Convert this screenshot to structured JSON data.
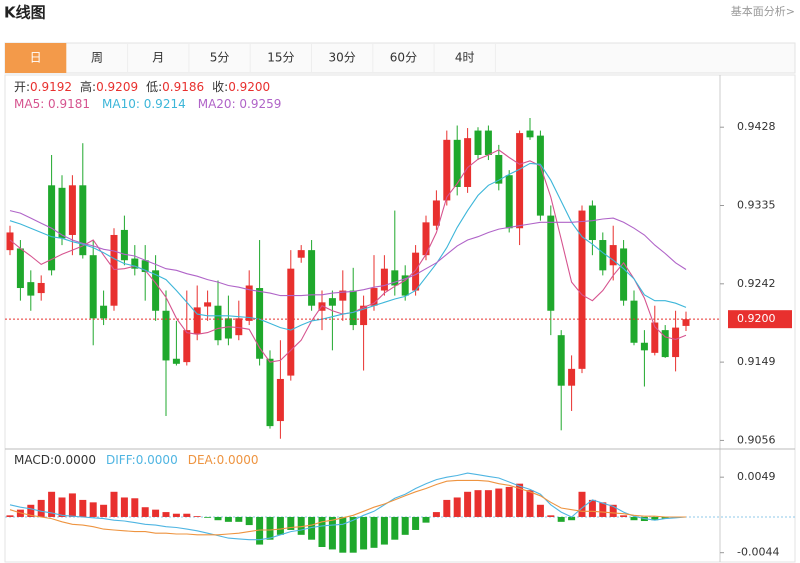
{
  "header": {
    "title": "K线图",
    "link": "基本面分析>"
  },
  "tabs": [
    "日",
    "周",
    "月",
    "5分",
    "15分",
    "30分",
    "60分",
    "4时"
  ],
  "active_tab": 0,
  "chart_data": [
    {
      "type": "candlestick",
      "info": [
        {
          "label": "开:",
          "value": "0.9192"
        },
        {
          "label": "高:",
          "value": "0.9209"
        },
        {
          "label": "低:",
          "value": "0.9186"
        },
        {
          "label": "收:",
          "value": "0.9200"
        }
      ],
      "up_color": "#e8302e",
      "down_color": "#1fa82c",
      "ohlc": [
        [
          0.9282,
          0.9311,
          0.9276,
          0.9303
        ],
        [
          0.9284,
          0.9294,
          0.9222,
          0.9237
        ],
        [
          0.9244,
          0.9258,
          0.921,
          0.9228
        ],
        [
          0.9231,
          0.9252,
          0.9222,
          0.9243
        ],
        [
          0.9359,
          0.9395,
          0.9252,
          0.9258
        ],
        [
          0.9356,
          0.9371,
          0.9288,
          0.9296
        ],
        [
          0.93,
          0.9371,
          0.9276,
          0.9359
        ],
        [
          0.9359,
          0.9409,
          0.9272,
          0.9276
        ],
        [
          0.9276,
          0.9294,
          0.9169,
          0.9201
        ],
        [
          0.9216,
          0.9234,
          0.9193,
          0.9201
        ],
        [
          0.9216,
          0.9308,
          0.921,
          0.93
        ],
        [
          0.9306,
          0.9323,
          0.9264,
          0.927
        ],
        [
          0.9272,
          0.9288,
          0.9252,
          0.926
        ],
        [
          0.927,
          0.9288,
          0.9222,
          0.9256
        ],
        [
          0.9258,
          0.9276,
          0.9198,
          0.921
        ],
        [
          0.921,
          0.9234,
          0.9085,
          0.9151
        ],
        [
          0.9153,
          0.9198,
          0.9145,
          0.9147
        ],
        [
          0.9149,
          0.9234,
          0.9145,
          0.9187
        ],
        [
          0.9183,
          0.924,
          0.9175,
          0.9214
        ],
        [
          0.9215,
          0.9234,
          0.9198,
          0.922
        ],
        [
          0.9216,
          0.9246,
          0.9169,
          0.9175
        ],
        [
          0.9201,
          0.9228,
          0.9169,
          0.9177
        ],
        [
          0.9181,
          0.9222,
          0.9175,
          0.9201
        ],
        [
          0.9198,
          0.9258,
          0.9193,
          0.924
        ],
        [
          0.9237,
          0.9294,
          0.9145,
          0.9153
        ],
        [
          0.9153,
          0.9163,
          0.907,
          0.9073
        ],
        [
          0.9079,
          0.9175,
          0.9058,
          0.9129
        ],
        [
          0.9133,
          0.9282,
          0.9127,
          0.926
        ],
        [
          0.9273,
          0.9288,
          0.9267,
          0.9282
        ],
        [
          0.9282,
          0.9294,
          0.921,
          0.9216
        ],
        [
          0.921,
          0.9234,
          0.9187,
          0.922
        ],
        [
          0.9225,
          0.9234,
          0.9163,
          0.9216
        ],
        [
          0.9222,
          0.9258,
          0.9198,
          0.9234
        ],
        [
          0.9234,
          0.9261,
          0.9187,
          0.9193
        ],
        [
          0.9193,
          0.9228,
          0.9139,
          0.9216
        ],
        [
          0.9216,
          0.9276,
          0.921,
          0.9237
        ],
        [
          0.9234,
          0.9276,
          0.9228,
          0.926
        ],
        [
          0.9258,
          0.9329,
          0.9228,
          0.924
        ],
        [
          0.9252,
          0.9264,
          0.9222,
          0.9228
        ],
        [
          0.9234,
          0.9288,
          0.9228,
          0.9279
        ],
        [
          0.9276,
          0.9323,
          0.927,
          0.9315
        ],
        [
          0.9311,
          0.9353,
          0.9306,
          0.9341
        ],
        [
          0.9341,
          0.9424,
          0.9335,
          0.9413
        ],
        [
          0.9413,
          0.943,
          0.9347,
          0.9357
        ],
        [
          0.9357,
          0.9427,
          0.935,
          0.9415
        ],
        [
          0.9424,
          0.9428,
          0.9389,
          0.9395
        ],
        [
          0.9424,
          0.943,
          0.9389,
          0.9395
        ],
        [
          0.9395,
          0.9407,
          0.9353,
          0.9361
        ],
        [
          0.9371,
          0.9377,
          0.9303,
          0.9308
        ],
        [
          0.9308,
          0.9424,
          0.9288,
          0.9421
        ],
        [
          0.9424,
          0.9439,
          0.9413,
          0.9416
        ],
        [
          0.9418,
          0.9424,
          0.9317,
          0.9323
        ],
        [
          0.9323,
          0.9335,
          0.9181,
          0.921
        ],
        [
          0.9181,
          0.9187,
          0.9068,
          0.9121
        ],
        [
          0.9121,
          0.9157,
          0.9091,
          0.9141
        ],
        [
          0.9141,
          0.9335,
          0.9136,
          0.9329
        ],
        [
          0.9335,
          0.9341,
          0.9276,
          0.9294
        ],
        [
          0.9294,
          0.9303,
          0.9252,
          0.9258
        ],
        [
          0.9264,
          0.9311,
          0.9246,
          0.9288
        ],
        [
          0.9284,
          0.9294,
          0.9216,
          0.9222
        ],
        [
          0.9222,
          0.9234,
          0.9169,
          0.9172
        ],
        [
          0.9172,
          0.9187,
          0.912,
          0.9163
        ],
        [
          0.916,
          0.9216,
          0.9157,
          0.9196
        ],
        [
          0.9187,
          0.9193,
          0.9154,
          0.9155
        ],
        [
          0.9155,
          0.921,
          0.9138,
          0.919
        ],
        [
          0.9192,
          0.9209,
          0.9186,
          0.92
        ]
      ],
      "series": [
        {
          "name": "MA5: 0.9181",
          "color": "#d6548f",
          "values": [
            0.9294,
            0.9284,
            0.9275,
            0.9265,
            0.9271,
            0.9277,
            0.9282,
            0.9287,
            0.9294,
            0.9276,
            0.9259,
            0.926,
            0.9263,
            0.9258,
            0.9243,
            0.9226,
            0.9201,
            0.9184,
            0.9182,
            0.9184,
            0.9189,
            0.9191,
            0.919,
            0.9188,
            0.9166,
            0.9149,
            0.9151,
            0.9163,
            0.9175,
            0.9198,
            0.9216,
            0.921,
            0.9206,
            0.9208,
            0.9214,
            0.9219,
            0.9231,
            0.9239,
            0.9246,
            0.9258,
            0.9277,
            0.9303,
            0.9345,
            0.9361,
            0.938,
            0.939,
            0.9395,
            0.9401,
            0.9392,
            0.9384,
            0.9388,
            0.9382,
            0.9345,
            0.9295,
            0.9244,
            0.9229,
            0.9222,
            0.9234,
            0.9252,
            0.9267,
            0.9248,
            0.9225,
            0.9191,
            0.9179,
            0.9176,
            0.9181
          ]
        },
        {
          "name": "MA10: 0.9214",
          "color": "#3db6d9",
          "values": [
            0.9317,
            0.9313,
            0.9308,
            0.9303,
            0.9298,
            0.9296,
            0.9292,
            0.9289,
            0.9285,
            0.9279,
            0.9272,
            0.9266,
            0.9263,
            0.9258,
            0.9253,
            0.9247,
            0.9234,
            0.922,
            0.9206,
            0.9204,
            0.9204,
            0.9204,
            0.9203,
            0.9202,
            0.92,
            0.9195,
            0.919,
            0.9187,
            0.9193,
            0.9198,
            0.92,
            0.9203,
            0.9206,
            0.9208,
            0.9212,
            0.9216,
            0.922,
            0.9224,
            0.9227,
            0.9234,
            0.925,
            0.9266,
            0.9285,
            0.9309,
            0.9329,
            0.9347,
            0.9359,
            0.9365,
            0.9372,
            0.9378,
            0.9385,
            0.9384,
            0.9365,
            0.934,
            0.9315,
            0.9298,
            0.9289,
            0.9279,
            0.927,
            0.926,
            0.9248,
            0.9229,
            0.9222,
            0.9222,
            0.9219,
            0.9214
          ]
        },
        {
          "name": "MA20: 0.9259",
          "color": "#b064c8",
          "values": [
            0.9329,
            0.9326,
            0.932,
            0.9314,
            0.9308,
            0.93,
            0.9294,
            0.929,
            0.9287,
            0.9283,
            0.9281,
            0.9277,
            0.9275,
            0.927,
            0.9265,
            0.926,
            0.9258,
            0.9254,
            0.9251,
            0.9247,
            0.9244,
            0.924,
            0.9238,
            0.9235,
            0.9233,
            0.9231,
            0.9228,
            0.9228,
            0.9228,
            0.9229,
            0.9229,
            0.9231,
            0.9232,
            0.9233,
            0.9235,
            0.9238,
            0.924,
            0.9244,
            0.9248,
            0.9253,
            0.926,
            0.9267,
            0.9277,
            0.9287,
            0.9294,
            0.9298,
            0.9303,
            0.9307,
            0.9309,
            0.9311,
            0.9313,
            0.9315,
            0.9315,
            0.9315,
            0.9315,
            0.9316,
            0.9317,
            0.9319,
            0.932,
            0.9315,
            0.9308,
            0.93,
            0.9288,
            0.9278,
            0.9267,
            0.9259
          ]
        }
      ],
      "current": {
        "value": 0.92,
        "label": "0.9200"
      },
      "ylim": [
        0.9047,
        0.949
      ],
      "yticks": [
        0.9428,
        0.9335,
        0.9242,
        0.9149,
        0.9056
      ]
    },
    {
      "type": "macd",
      "histogram": {
        "name": "MACD:0.0000",
        "color": "#e8302e",
        "down_color": "#1fa82c",
        "values": [
          0.0002,
          0.0009,
          0.0015,
          0.0021,
          0.0031,
          0.0024,
          0.0029,
          0.0021,
          0.0018,
          0.0015,
          0.0031,
          0.0024,
          0.0023,
          0.0012,
          0.0009,
          0.0006,
          0.0004,
          0.0004,
          0.0001,
          -0.0001,
          -0.0004,
          -0.0006,
          -0.0006,
          -0.001,
          -0.0034,
          -0.0028,
          -0.0022,
          -0.0016,
          -0.0022,
          -0.0028,
          -0.0037,
          -0.004,
          -0.0044,
          -0.0044,
          -0.004,
          -0.0038,
          -0.0034,
          -0.0028,
          -0.0022,
          -0.0016,
          -0.0007,
          0.0006,
          0.0021,
          0.0024,
          0.0031,
          0.0033,
          0.0033,
          0.0035,
          0.0037,
          0.0041,
          0.0033,
          0.0015,
          0.0002,
          -0.0006,
          -0.0004,
          0.0031,
          0.0021,
          0.0018,
          0.0015,
          0.0002,
          -0.0004,
          -0.0005,
          -0.0004,
          -0.0002,
          -0.0001,
          0
        ]
      },
      "series": [
        {
          "name": "DIFF:0.0000",
          "color": "#4fb5e2",
          "values": [
            0.0015,
            0.0012,
            0.001,
            0.0007,
            0.0005,
            0.0002,
            0.0001,
            0,
            -0.0001,
            -0.0002,
            -0.0004,
            -0.0005,
            -0.0007,
            -0.0009,
            -0.001,
            -0.0012,
            -0.0013,
            -0.0015,
            -0.0017,
            -0.002,
            -0.0023,
            -0.0026,
            -0.0027,
            -0.0028,
            -0.0028,
            -0.0026,
            -0.0022,
            -0.0018,
            -0.0016,
            -0.0013,
            -0.0011,
            -0.001,
            -0.0009,
            -0.0004,
            0.0002,
            0.0007,
            0.0015,
            0.0023,
            0.0028,
            0.0035,
            0.0041,
            0.0046,
            0.0049,
            0.0051,
            0.0054,
            0.0052,
            0.005,
            0.0048,
            0.0043,
            0.0038,
            0.0034,
            0.0028,
            0.0015,
            0.0006,
            0,
            0.0011,
            0.0021,
            0.0017,
            0.0013,
            0.0006,
            0.0001,
            -0.0002,
            -0.0004,
            -0.0002,
            -0.0001,
            0
          ]
        },
        {
          "name": "DEA:0.0000",
          "color": "#ee9440",
          "values": [
            0.0009,
            0.0005,
            0.0002,
            0,
            -0.0002,
            -0.0006,
            -0.0009,
            -0.001,
            -0.0012,
            -0.0015,
            -0.0016,
            -0.0017,
            -0.0018,
            -0.0018,
            -0.002,
            -0.002,
            -0.0021,
            -0.0021,
            -0.0022,
            -0.0022,
            -0.0022,
            -0.0021,
            -0.002,
            -0.0018,
            -0.0016,
            -0.0016,
            -0.0015,
            -0.0013,
            -0.0012,
            -0.001,
            -0.0006,
            -0.0004,
            -0.0001,
            0.0002,
            0.0007,
            0.0012,
            0.0016,
            0.0021,
            0.0026,
            0.0031,
            0.0035,
            0.004,
            0.0044,
            0.0045,
            0.0045,
            0.0045,
            0.0044,
            0.0041,
            0.0039,
            0.0035,
            0.0031,
            0.0026,
            0.0018,
            0.0011,
            0.0009,
            0.0007,
            0.0007,
            0.0006,
            0.0005,
            0.0004,
            0.0002,
            0.0001,
            0.0001,
            0,
            0,
            0
          ]
        }
      ],
      "ylim": [
        -0.0053,
        0.008
      ],
      "yticks": [
        0.0049,
        -0.0044
      ]
    }
  ]
}
